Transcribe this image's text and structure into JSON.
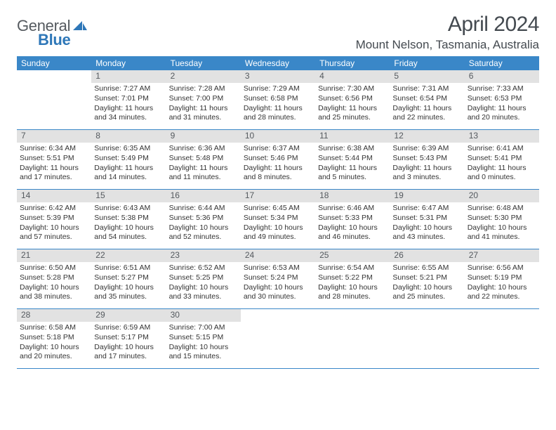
{
  "logo": {
    "text1": "General",
    "text2": "Blue"
  },
  "title": "April 2024",
  "location": "Mount Nelson, Tasmania, Australia",
  "colors": {
    "header_bg": "#3a87c8",
    "header_text": "#ffffff",
    "daynum_bg": "#e2e2e2",
    "daynum_text": "#555a5f",
    "body_text": "#333333",
    "rule": "#3a87c8",
    "logo_gray": "#555a5f",
    "logo_blue": "#2e77b8",
    "title_text": "#444a50"
  },
  "typography": {
    "title_fontsize": 30,
    "location_fontsize": 17,
    "weekday_fontsize": 12,
    "daynum_fontsize": 12,
    "body_fontsize": 10.5,
    "logo_fontsize": 22
  },
  "weekdays": [
    "Sunday",
    "Monday",
    "Tuesday",
    "Wednesday",
    "Thursday",
    "Friday",
    "Saturday"
  ],
  "weeks": [
    [
      null,
      {
        "n": "1",
        "sr": "Sunrise: 7:27 AM",
        "ss": "Sunset: 7:01 PM",
        "dl": "Daylight: 11 hours and 34 minutes."
      },
      {
        "n": "2",
        "sr": "Sunrise: 7:28 AM",
        "ss": "Sunset: 7:00 PM",
        "dl": "Daylight: 11 hours and 31 minutes."
      },
      {
        "n": "3",
        "sr": "Sunrise: 7:29 AM",
        "ss": "Sunset: 6:58 PM",
        "dl": "Daylight: 11 hours and 28 minutes."
      },
      {
        "n": "4",
        "sr": "Sunrise: 7:30 AM",
        "ss": "Sunset: 6:56 PM",
        "dl": "Daylight: 11 hours and 25 minutes."
      },
      {
        "n": "5",
        "sr": "Sunrise: 7:31 AM",
        "ss": "Sunset: 6:54 PM",
        "dl": "Daylight: 11 hours and 22 minutes."
      },
      {
        "n": "6",
        "sr": "Sunrise: 7:33 AM",
        "ss": "Sunset: 6:53 PM",
        "dl": "Daylight: 11 hours and 20 minutes."
      }
    ],
    [
      {
        "n": "7",
        "sr": "Sunrise: 6:34 AM",
        "ss": "Sunset: 5:51 PM",
        "dl": "Daylight: 11 hours and 17 minutes."
      },
      {
        "n": "8",
        "sr": "Sunrise: 6:35 AM",
        "ss": "Sunset: 5:49 PM",
        "dl": "Daylight: 11 hours and 14 minutes."
      },
      {
        "n": "9",
        "sr": "Sunrise: 6:36 AM",
        "ss": "Sunset: 5:48 PM",
        "dl": "Daylight: 11 hours and 11 minutes."
      },
      {
        "n": "10",
        "sr": "Sunrise: 6:37 AM",
        "ss": "Sunset: 5:46 PM",
        "dl": "Daylight: 11 hours and 8 minutes."
      },
      {
        "n": "11",
        "sr": "Sunrise: 6:38 AM",
        "ss": "Sunset: 5:44 PM",
        "dl": "Daylight: 11 hours and 5 minutes."
      },
      {
        "n": "12",
        "sr": "Sunrise: 6:39 AM",
        "ss": "Sunset: 5:43 PM",
        "dl": "Daylight: 11 hours and 3 minutes."
      },
      {
        "n": "13",
        "sr": "Sunrise: 6:41 AM",
        "ss": "Sunset: 5:41 PM",
        "dl": "Daylight: 11 hours and 0 minutes."
      }
    ],
    [
      {
        "n": "14",
        "sr": "Sunrise: 6:42 AM",
        "ss": "Sunset: 5:39 PM",
        "dl": "Daylight: 10 hours and 57 minutes."
      },
      {
        "n": "15",
        "sr": "Sunrise: 6:43 AM",
        "ss": "Sunset: 5:38 PM",
        "dl": "Daylight: 10 hours and 54 minutes."
      },
      {
        "n": "16",
        "sr": "Sunrise: 6:44 AM",
        "ss": "Sunset: 5:36 PM",
        "dl": "Daylight: 10 hours and 52 minutes."
      },
      {
        "n": "17",
        "sr": "Sunrise: 6:45 AM",
        "ss": "Sunset: 5:34 PM",
        "dl": "Daylight: 10 hours and 49 minutes."
      },
      {
        "n": "18",
        "sr": "Sunrise: 6:46 AM",
        "ss": "Sunset: 5:33 PM",
        "dl": "Daylight: 10 hours and 46 minutes."
      },
      {
        "n": "19",
        "sr": "Sunrise: 6:47 AM",
        "ss": "Sunset: 5:31 PM",
        "dl": "Daylight: 10 hours and 43 minutes."
      },
      {
        "n": "20",
        "sr": "Sunrise: 6:48 AM",
        "ss": "Sunset: 5:30 PM",
        "dl": "Daylight: 10 hours and 41 minutes."
      }
    ],
    [
      {
        "n": "21",
        "sr": "Sunrise: 6:50 AM",
        "ss": "Sunset: 5:28 PM",
        "dl": "Daylight: 10 hours and 38 minutes."
      },
      {
        "n": "22",
        "sr": "Sunrise: 6:51 AM",
        "ss": "Sunset: 5:27 PM",
        "dl": "Daylight: 10 hours and 35 minutes."
      },
      {
        "n": "23",
        "sr": "Sunrise: 6:52 AM",
        "ss": "Sunset: 5:25 PM",
        "dl": "Daylight: 10 hours and 33 minutes."
      },
      {
        "n": "24",
        "sr": "Sunrise: 6:53 AM",
        "ss": "Sunset: 5:24 PM",
        "dl": "Daylight: 10 hours and 30 minutes."
      },
      {
        "n": "25",
        "sr": "Sunrise: 6:54 AM",
        "ss": "Sunset: 5:22 PM",
        "dl": "Daylight: 10 hours and 28 minutes."
      },
      {
        "n": "26",
        "sr": "Sunrise: 6:55 AM",
        "ss": "Sunset: 5:21 PM",
        "dl": "Daylight: 10 hours and 25 minutes."
      },
      {
        "n": "27",
        "sr": "Sunrise: 6:56 AM",
        "ss": "Sunset: 5:19 PM",
        "dl": "Daylight: 10 hours and 22 minutes."
      }
    ],
    [
      {
        "n": "28",
        "sr": "Sunrise: 6:58 AM",
        "ss": "Sunset: 5:18 PM",
        "dl": "Daylight: 10 hours and 20 minutes."
      },
      {
        "n": "29",
        "sr": "Sunrise: 6:59 AM",
        "ss": "Sunset: 5:17 PM",
        "dl": "Daylight: 10 hours and 17 minutes."
      },
      {
        "n": "30",
        "sr": "Sunrise: 7:00 AM",
        "ss": "Sunset: 5:15 PM",
        "dl": "Daylight: 10 hours and 15 minutes."
      },
      null,
      null,
      null,
      null
    ]
  ]
}
